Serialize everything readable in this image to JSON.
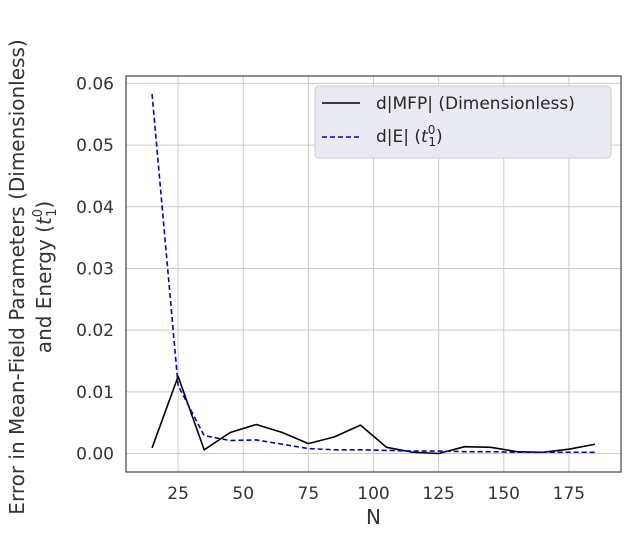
{
  "chart_data": {
    "type": "line",
    "title": "",
    "xlabel": "N",
    "ylabel_line1": "Error in Mean-Field Parameters (Dimensionless)",
    "ylabel_line2_prefix": "and Energy (",
    "ylabel_line2_symbol": "t",
    "ylabel_line2_sup": "0",
    "ylabel_line2_sub": "1",
    "ylabel_line2_suffix": ")",
    "xlim": [
      5,
      195
    ],
    "ylim": [
      -0.003,
      0.0612
    ],
    "xticks": [
      25,
      50,
      75,
      100,
      125,
      150,
      175
    ],
    "xtick_labels": [
      "25",
      "50",
      "75",
      "100",
      "125",
      "150",
      "175"
    ],
    "yticks": [
      0.0,
      0.01,
      0.02,
      0.03,
      0.04,
      0.05,
      0.06
    ],
    "ytick_labels": [
      "0.00",
      "0.01",
      "0.02",
      "0.03",
      "0.04",
      "0.05",
      "0.06"
    ],
    "grid": true,
    "legend_position": "top-right",
    "x": [
      15,
      25,
      35,
      45,
      55,
      65,
      75,
      85,
      95,
      105,
      115,
      125,
      135,
      145,
      155,
      165,
      175,
      185
    ],
    "series": [
      {
        "name": "d|MFP| (Dimensionless)",
        "color": "#000000",
        "dash": "solid",
        "values": [
          0.0009,
          0.0125,
          0.0006,
          0.0034,
          0.0047,
          0.0034,
          0.0016,
          0.0027,
          0.0046,
          0.001,
          0.0002,
          0.0,
          0.0011,
          0.001,
          0.0003,
          0.0002,
          0.0007,
          0.0015
        ]
      },
      {
        "name_prefix": "d|E| (",
        "name_symbol": "t",
        "name_sup": "0",
        "name_sub": "1",
        "name_suffix": ")",
        "color": "#0000cc",
        "dash": "dashed",
        "values": [
          0.0583,
          0.011,
          0.0029,
          0.0021,
          0.0022,
          0.0015,
          0.0008,
          0.0006,
          0.0006,
          0.0005,
          0.0004,
          0.0004,
          0.0003,
          0.0003,
          0.0002,
          0.0002,
          0.0002,
          0.0002
        ]
      }
    ]
  }
}
